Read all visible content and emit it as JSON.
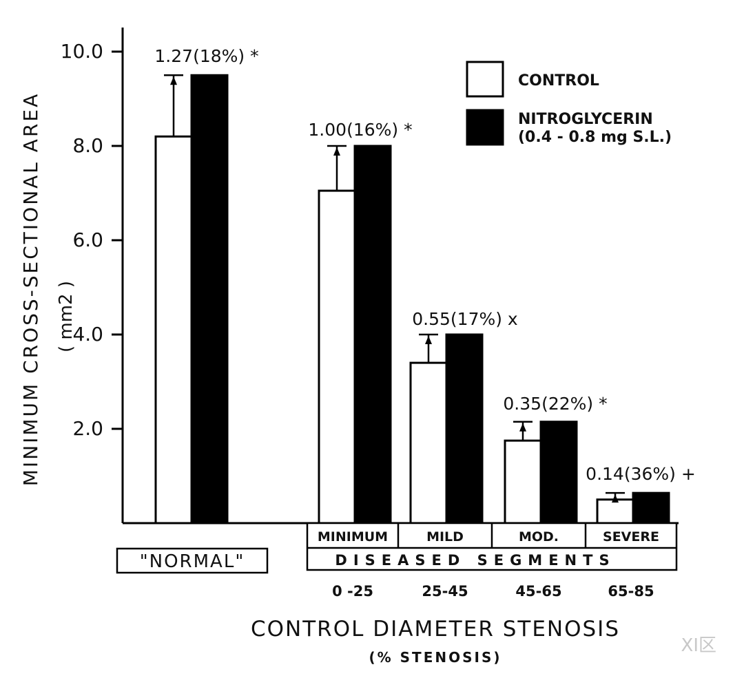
{
  "chart_data": {
    "type": "bar",
    "ylabel": "MINIMUM CROSS-SECTIONAL AREA",
    "ylabel_unit": "( mm2 )",
    "ylim": [
      0,
      10
    ],
    "yticks": [
      "10.0",
      "8.0",
      "6.0",
      "4.0",
      "2.0"
    ],
    "ytick_values": [
      10,
      8,
      6,
      4,
      2
    ],
    "xlabel": "CONTROL DIAMETER STENOSIS",
    "xlabel_sub": "(% STENOSIS)",
    "categories": [
      "\"NORMAL\"",
      "MINIMUM",
      "MILD",
      "MOD.",
      "SEVERE"
    ],
    "category_group": "DISEASED SEGMENTS",
    "stenosis_ranges": [
      "0 -25",
      "25-45",
      "45-65",
      "65-85"
    ],
    "series": [
      {
        "name": "CONTROL",
        "color": "#ffffff",
        "values": [
          8.2,
          7.05,
          3.4,
          1.75,
          0.5
        ]
      },
      {
        "name": "NITROGLYCERIN (0.4 - 0.8 mg S.L.)",
        "color": "#000000",
        "values": [
          9.5,
          8.0,
          4.0,
          2.15,
          0.64
        ]
      }
    ],
    "annotations": [
      "1.27(18%) *",
      "1.00(16%) *",
      "0.55(17%) x",
      "0.35(22%) *",
      "0.14(36%) +"
    ],
    "legend": [
      "CONTROL",
      "NITROGLYCERIN",
      "(0.4 - 0.8 mg S.L.)"
    ],
    "legend_position": "top-right",
    "watermark": "XI区"
  }
}
